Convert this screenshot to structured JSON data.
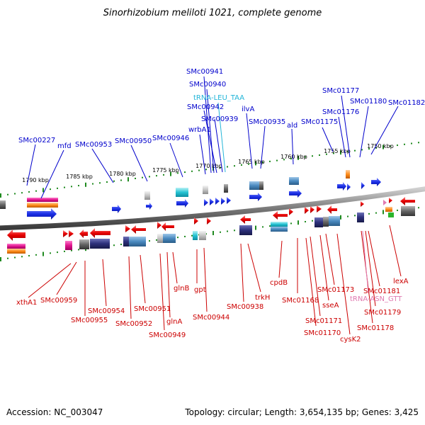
{
  "title": "Sinorhizobium meliloti 1021, complete genome",
  "footer": {
    "accession": "Accession: NC_003047",
    "topology": "Topology: circular; Length: 3,654,135 bp; Genes: 3,425"
  },
  "colors": {
    "forward_label": "#0000cc",
    "reverse_label": "#cc0000",
    "trna_forward": "#22b5d8",
    "trna_reverse": "#e07ab0",
    "backbone": "#8a8a8a",
    "dots": "#1f8a1f"
  },
  "scale_ticks": [
    "1790 kbp",
    "1785 kbp",
    "1780 kbp",
    "1775 kbp",
    "1770 kbp",
    "1765 kbp",
    "1760 kbp",
    "1755 kbp",
    "1750 kbp"
  ],
  "forward_labels": [
    "SMc00227",
    "mfd",
    "SMc00953",
    "SMc00950",
    "SMc00946",
    "wrbA1",
    "SMc00942",
    "SMc00941",
    "SMc00940",
    "tRNA-LEU_TAA",
    "SMc00939",
    "ilvA",
    "SMc00935",
    "ald",
    "SMc01175",
    "SMc01176",
    "SMc01177",
    "SMc01180",
    "SMc01182"
  ],
  "reverse_labels": [
    "xthA1",
    "SMc00959",
    "SMc00955",
    "SMc00954",
    "SMc00952",
    "SMc00951",
    "glnA",
    "SMc00949",
    "glnB",
    "gpt",
    "SMc00944",
    "SMc00938",
    "trkH",
    "cpdB",
    "SMc01168",
    "SMc01171",
    "SMc01170",
    "sseA",
    "SMc01173",
    "cysK2",
    "tRNA-ASN_GTT",
    "SMc01178",
    "SMc01179",
    "SMc01181",
    "lexA"
  ]
}
